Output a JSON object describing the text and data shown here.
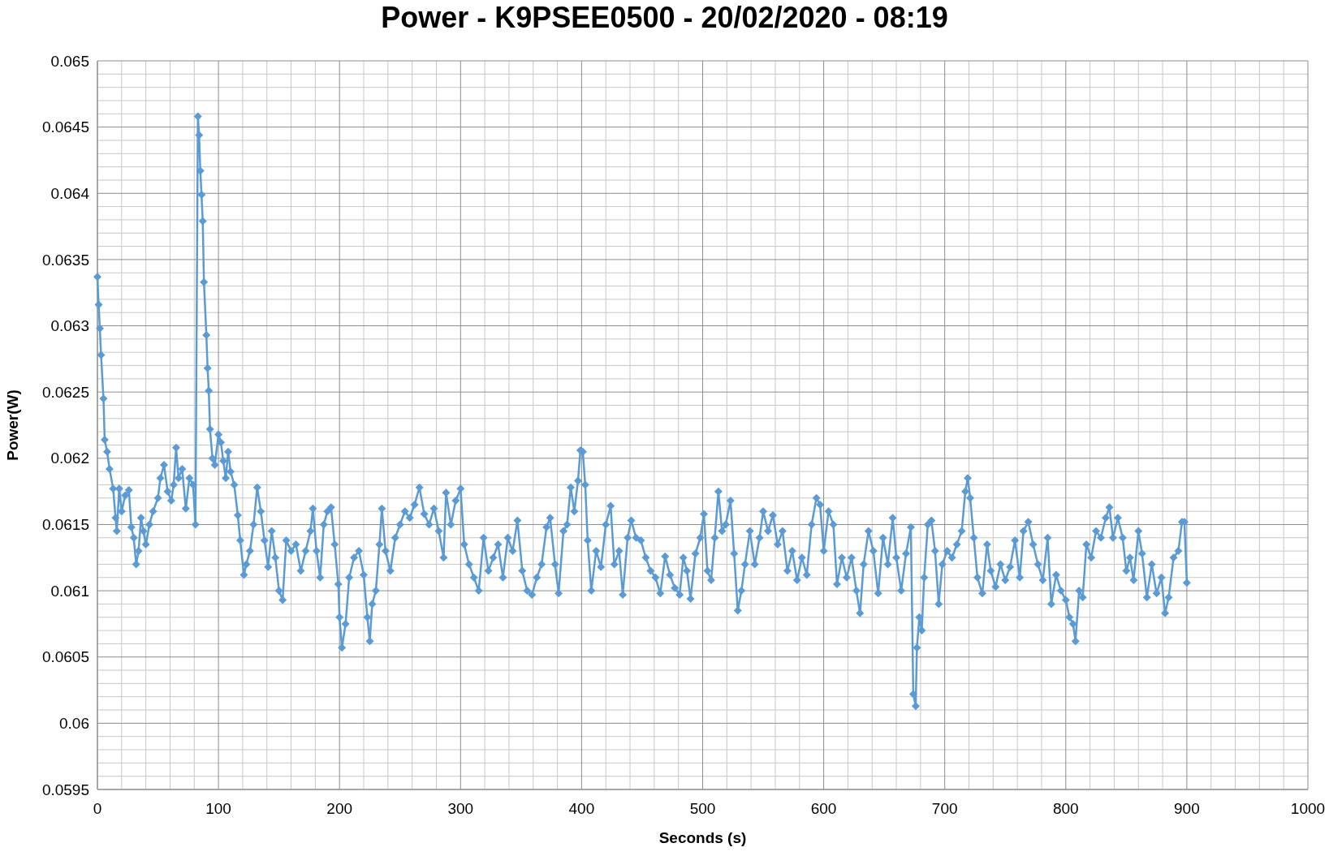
{
  "chart_data": {
    "type": "line",
    "title": "Power - K9PSEE0500 - 20/02/2020 - 08:19",
    "xlabel": "Seconds (s)",
    "ylabel": "Power(W)",
    "xlim": [
      0,
      1000
    ],
    "xticks": [
      0,
      100,
      200,
      300,
      400,
      500,
      600,
      700,
      800,
      900,
      1000
    ],
    "ylim": [
      0.0595,
      0.065
    ],
    "yticks": [
      0.0595,
      0.06,
      0.0605,
      0.061,
      0.0615,
      0.062,
      0.0625,
      0.063,
      0.0635,
      0.064,
      0.0645,
      0.065
    ],
    "grid": true,
    "marker": "diamond",
    "line_style": "solid",
    "series": [
      {
        "color": "#5b9bd5",
        "x": [
          0,
          1,
          2,
          3,
          5,
          6,
          8,
          10,
          13,
          15,
          16,
          18,
          20,
          23,
          26,
          28,
          30,
          32,
          34,
          36,
          38,
          40,
          43,
          46,
          50,
          52,
          55,
          58,
          61,
          63,
          65,
          67,
          70,
          73,
          76,
          79,
          81,
          83,
          84,
          85,
          86,
          87,
          88,
          90,
          91,
          92,
          93,
          95,
          97,
          100,
          102,
          104,
          106,
          108,
          110,
          113,
          116,
          118,
          121,
          123,
          126,
          129,
          132,
          135,
          138,
          141,
          144,
          147,
          150,
          153,
          156,
          160,
          164,
          168,
          172,
          176,
          178,
          181,
          184,
          187,
          190,
          193,
          196,
          199,
          200,
          202,
          205,
          208,
          212,
          216,
          220,
          223,
          225,
          227,
          230,
          233,
          235,
          238,
          242,
          246,
          250,
          254,
          258,
          262,
          266,
          270,
          274,
          278,
          282,
          286,
          288,
          292,
          296,
          300,
          303,
          307,
          311,
          315,
          319,
          323,
          327,
          331,
          335,
          339,
          343,
          347,
          351,
          355,
          359,
          363,
          367,
          371,
          374,
          378,
          381,
          385,
          388,
          391,
          394,
          397,
          399,
          401,
          403,
          405,
          408,
          412,
          416,
          420,
          424,
          427,
          431,
          434,
          438,
          441,
          445,
          449,
          453,
          457,
          461,
          465,
          469,
          473,
          477,
          481,
          484,
          487,
          490,
          494,
          498,
          501,
          504,
          507,
          510,
          513,
          516,
          519,
          523,
          526,
          529,
          532,
          535,
          539,
          543,
          547,
          550,
          554,
          558,
          562,
          566,
          570,
          574,
          578,
          582,
          586,
          590,
          594,
          597,
          600,
          604,
          608,
          611,
          615,
          619,
          623,
          627,
          630,
          633,
          637,
          641,
          645,
          649,
          653,
          657,
          660,
          664,
          668,
          672,
          674,
          676,
          677,
          679,
          681,
          683,
          686,
          689,
          692,
          695,
          698,
          702,
          706,
          710,
          714,
          717,
          719,
          721,
          724,
          727,
          731,
          735,
          738,
          742,
          746,
          750,
          754,
          758,
          762,
          765,
          769,
          773,
          777,
          781,
          785,
          788,
          792,
          796,
          800,
          803,
          806,
          808,
          811,
          814,
          817,
          821,
          825,
          829,
          833,
          836,
          839,
          843,
          847,
          850,
          853,
          856,
          860,
          863,
          867,
          871,
          875,
          879,
          882,
          885,
          889,
          893,
          896,
          898,
          900
        ],
        "values": [
          0.06337,
          0.06316,
          0.06298,
          0.06278,
          0.06245,
          0.06214,
          0.06205,
          0.06192,
          0.06177,
          0.06155,
          0.06145,
          0.06177,
          0.0616,
          0.06172,
          0.06176,
          0.06148,
          0.0614,
          0.0612,
          0.0613,
          0.06155,
          0.06145,
          0.06135,
          0.0615,
          0.0616,
          0.0617,
          0.06185,
          0.06195,
          0.06175,
          0.06168,
          0.0618,
          0.06208,
          0.06185,
          0.06192,
          0.06162,
          0.06185,
          0.0618,
          0.0615,
          0.06458,
          0.06444,
          0.06417,
          0.06399,
          0.06379,
          0.06333,
          0.06293,
          0.06268,
          0.06251,
          0.06222,
          0.062,
          0.06195,
          0.06218,
          0.06212,
          0.06198,
          0.06185,
          0.06205,
          0.0619,
          0.0618,
          0.06157,
          0.06138,
          0.06112,
          0.0612,
          0.0613,
          0.0615,
          0.06178,
          0.0616,
          0.06138,
          0.06118,
          0.06145,
          0.06125,
          0.061,
          0.06093,
          0.06138,
          0.0613,
          0.06135,
          0.06115,
          0.0613,
          0.06145,
          0.06162,
          0.0613,
          0.0611,
          0.0615,
          0.0616,
          0.06163,
          0.06135,
          0.06105,
          0.0608,
          0.06057,
          0.06075,
          0.0611,
          0.06125,
          0.0613,
          0.06112,
          0.0608,
          0.06062,
          0.0609,
          0.061,
          0.06135,
          0.06162,
          0.0613,
          0.06115,
          0.0614,
          0.0615,
          0.0616,
          0.06155,
          0.06165,
          0.06178,
          0.06158,
          0.0615,
          0.06162,
          0.06145,
          0.06125,
          0.06174,
          0.0615,
          0.06168,
          0.06177,
          0.06135,
          0.0612,
          0.0611,
          0.061,
          0.0614,
          0.06115,
          0.06125,
          0.06135,
          0.0611,
          0.0614,
          0.0613,
          0.06153,
          0.06115,
          0.061,
          0.06097,
          0.0611,
          0.0612,
          0.06148,
          0.06155,
          0.0612,
          0.06098,
          0.06145,
          0.0615,
          0.06178,
          0.0616,
          0.06183,
          0.06206,
          0.06205,
          0.0618,
          0.06138,
          0.061,
          0.0613,
          0.06118,
          0.0615,
          0.06164,
          0.0612,
          0.0613,
          0.06097,
          0.0614,
          0.06153,
          0.0614,
          0.06138,
          0.06125,
          0.06115,
          0.0611,
          0.06098,
          0.06126,
          0.06112,
          0.06102,
          0.06097,
          0.06125,
          0.06115,
          0.06094,
          0.06128,
          0.0614,
          0.06158,
          0.06115,
          0.06108,
          0.0614,
          0.06175,
          0.06145,
          0.0615,
          0.06168,
          0.06128,
          0.06085,
          0.061,
          0.0612,
          0.06145,
          0.0612,
          0.0614,
          0.0616,
          0.06145,
          0.06157,
          0.06135,
          0.06145,
          0.06115,
          0.0613,
          0.06108,
          0.06125,
          0.06112,
          0.0615,
          0.0617,
          0.06165,
          0.0613,
          0.0616,
          0.0615,
          0.06105,
          0.06125,
          0.0611,
          0.06125,
          0.061,
          0.06083,
          0.0612,
          0.06145,
          0.0613,
          0.06098,
          0.0614,
          0.0612,
          0.06155,
          0.06125,
          0.061,
          0.06128,
          0.06148,
          0.06022,
          0.06013,
          0.06057,
          0.0608,
          0.0607,
          0.0611,
          0.0615,
          0.06153,
          0.0613,
          0.0609,
          0.0612,
          0.0613,
          0.06125,
          0.06135,
          0.06145,
          0.06175,
          0.06185,
          0.0617,
          0.0614,
          0.0611,
          0.06098,
          0.06135,
          0.06115,
          0.06103,
          0.0612,
          0.06108,
          0.06118,
          0.06138,
          0.0611,
          0.06145,
          0.06152,
          0.06135,
          0.0612,
          0.06108,
          0.0614,
          0.0609,
          0.06112,
          0.061,
          0.06093,
          0.0608,
          0.06075,
          0.06062,
          0.061,
          0.06095,
          0.06135,
          0.06125,
          0.06145,
          0.0614,
          0.06155,
          0.06163,
          0.0614,
          0.06155,
          0.0614,
          0.06115,
          0.06125,
          0.06108,
          0.06145,
          0.06128,
          0.06095,
          0.0612,
          0.06098,
          0.0611,
          0.06083,
          0.06095,
          0.06125,
          0.0613,
          0.06152,
          0.06152,
          0.06106
        ]
      }
    ]
  }
}
